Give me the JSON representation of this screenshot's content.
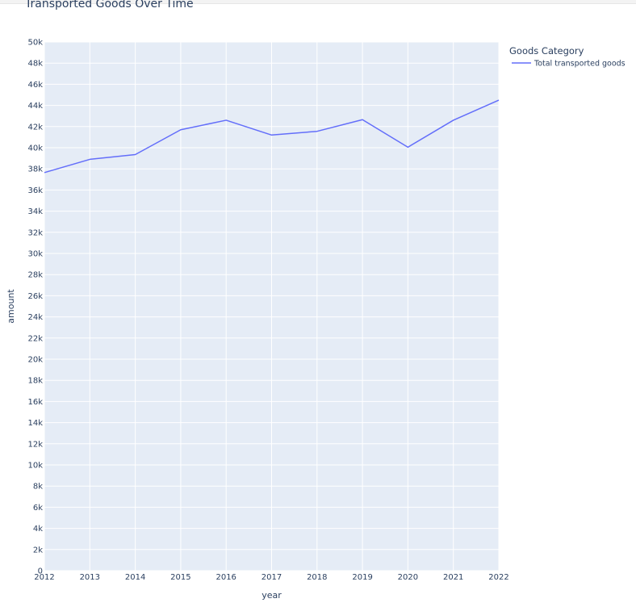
{
  "chart_data": {
    "type": "line",
    "title": "Transported Goods Over Time",
    "xlabel": "year",
    "ylabel": "amount",
    "x": [
      2012,
      2013,
      2014,
      2015,
      2016,
      2017,
      2018,
      2019,
      2020,
      2021,
      2022
    ],
    "xlim": [
      2012,
      2022
    ],
    "ylim": [
      0,
      50000
    ],
    "y_ticks": [
      "0",
      "2k",
      "4k",
      "6k",
      "8k",
      "10k",
      "12k",
      "14k",
      "16k",
      "18k",
      "20k",
      "22k",
      "24k",
      "26k",
      "28k",
      "30k",
      "32k",
      "34k",
      "36k",
      "38k",
      "40k",
      "42k",
      "44k",
      "46k",
      "48k",
      "50k"
    ],
    "y_tick_values": [
      0,
      2000,
      4000,
      6000,
      8000,
      10000,
      12000,
      14000,
      16000,
      18000,
      20000,
      22000,
      24000,
      26000,
      28000,
      30000,
      32000,
      34000,
      36000,
      38000,
      40000,
      42000,
      44000,
      46000,
      48000,
      50000
    ],
    "x_ticks": [
      "2012",
      "2013",
      "2014",
      "2015",
      "2016",
      "2017",
      "2018",
      "2019",
      "2020",
      "2021",
      "2022"
    ],
    "legend_title": "Goods Category",
    "legend_position": "top-right",
    "grid": true,
    "plot_background": "#e5ecf6",
    "grid_color": "#ffffff",
    "series": [
      {
        "name": "Total transported goods",
        "color": "#636efa",
        "values": [
          37650,
          38900,
          39350,
          41700,
          42600,
          41200,
          41550,
          42650,
          40050,
          42600,
          44500
        ]
      }
    ]
  }
}
